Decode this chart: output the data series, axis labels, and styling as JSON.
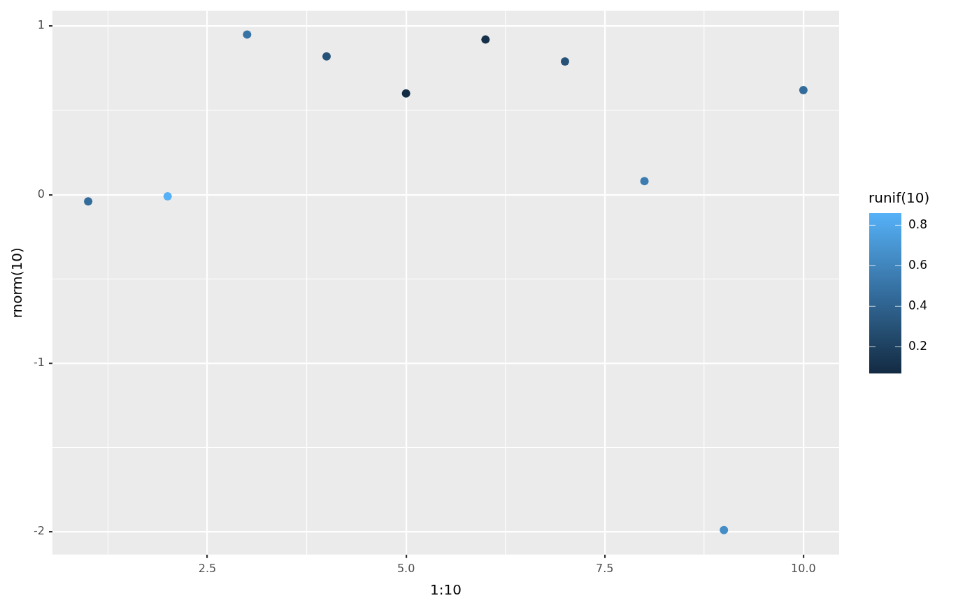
{
  "chart_data": {
    "type": "scatter",
    "xlabel": "1:10",
    "ylabel": "rnorm(10)",
    "clabel": "runif(10)",
    "x": [
      1,
      2,
      3,
      4,
      5,
      6,
      7,
      8,
      9,
      10
    ],
    "values": [
      -0.04,
      -0.01,
      0.95,
      0.82,
      0.6,
      0.92,
      0.79,
      0.08,
      -1.99,
      0.62
    ],
    "cvalues": [
      0.45,
      0.86,
      0.5,
      0.3,
      0.07,
      0.1,
      0.3,
      0.55,
      0.65,
      0.45
    ],
    "clim": [
      0.07,
      0.86
    ],
    "cticks": [
      0.2,
      0.4,
      0.6,
      0.8
    ],
    "colors": [
      "#336b9a",
      "#56b1f7",
      "#3774a5",
      "#275277",
      "#132b43",
      "#16304a",
      "#275277",
      "#3c7cb0",
      "#448dc7",
      "#336b9a"
    ],
    "xlim": [
      0.55,
      10.45
    ],
    "xticks": [
      {
        "value": 2.5,
        "label": "2.5"
      },
      {
        "value": 5,
        "label": "5.0"
      },
      {
        "value": 7.5,
        "label": "7.5"
      },
      {
        "value": 10,
        "label": "10.0"
      }
    ],
    "ylim": [
      -2.135,
      1.09
    ],
    "yticks": [
      -2,
      -1,
      0,
      1
    ],
    "grid": true,
    "marker": "circle"
  }
}
